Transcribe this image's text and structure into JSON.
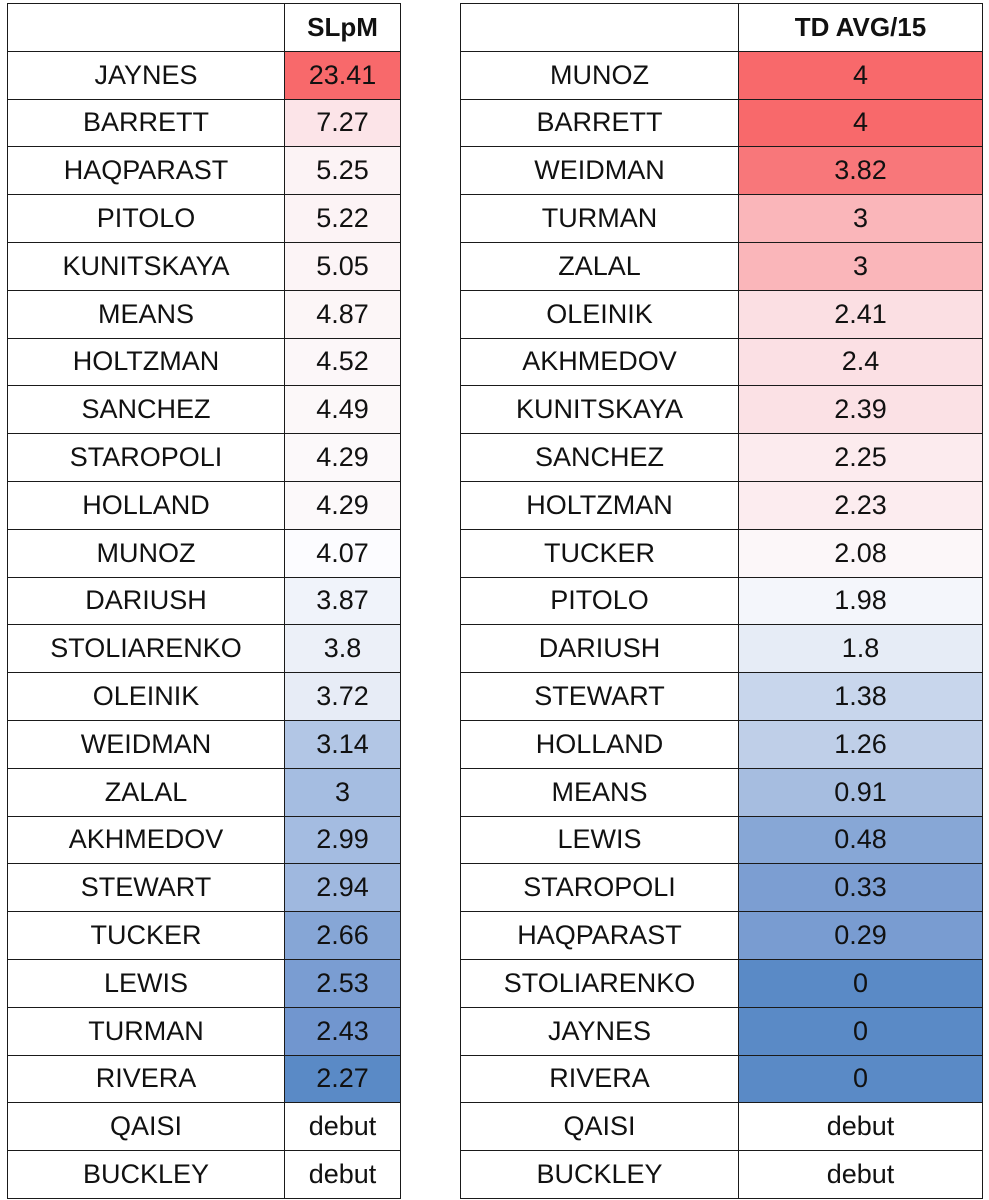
{
  "left_table": {
    "header_name": "",
    "header_value": "SLpM",
    "rows": [
      {
        "name": "JAYNES",
        "value": "23.41",
        "color": "#F8696B"
      },
      {
        "name": "BARRETT",
        "value": "7.27",
        "color": "#FCE4E8"
      },
      {
        "name": "HAQPARAST",
        "value": "5.25",
        "color": "#FCF3F5"
      },
      {
        "name": "PITOLO",
        "value": "5.22",
        "color": "#FCF3F5"
      },
      {
        "name": "KUNITSKAYA",
        "value": "5.05",
        "color": "#FCF4F6"
      },
      {
        "name": "MEANS",
        "value": "4.87",
        "color": "#FCF6F7"
      },
      {
        "name": "HOLTZMAN",
        "value": "4.52",
        "color": "#FCF7F9"
      },
      {
        "name": "SANCHEZ",
        "value": "4.49",
        "color": "#FCF8F9"
      },
      {
        "name": "STAROPOLI",
        "value": "4.29",
        "color": "#FCF9FA"
      },
      {
        "name": "HOLLAND",
        "value": "4.29",
        "color": "#FCF9FA"
      },
      {
        "name": "MUNOZ",
        "value": "4.07",
        "color": "#FCFCFF"
      },
      {
        "name": "DARIUSH",
        "value": "3.87",
        "color": "#F0F3FA"
      },
      {
        "name": "STOLIARENKO",
        "value": "3.8",
        "color": "#ECF0F8"
      },
      {
        "name": "OLEINIK",
        "value": "3.72",
        "color": "#E7ECF6"
      },
      {
        "name": "WEIDMAN",
        "value": "3.14",
        "color": "#B2C6E5"
      },
      {
        "name": "ZALAL",
        "value": "3",
        "color": "#A5BDE1"
      },
      {
        "name": "AKHMEDOV",
        "value": "2.99",
        "color": "#A4BCE1"
      },
      {
        "name": "STEWART",
        "value": "2.94",
        "color": "#9FB8DF"
      },
      {
        "name": "TUCKER",
        "value": "2.66",
        "color": "#86A6D6"
      },
      {
        "name": "LEWIS",
        "value": "2.53",
        "color": "#7A9DD2"
      },
      {
        "name": "TURMAN",
        "value": "2.43",
        "color": "#7196CF"
      },
      {
        "name": "RIVERA",
        "value": "2.27",
        "color": "#5A8AC6"
      },
      {
        "name": "QAISI",
        "value": "debut",
        "color": "#FFFFFF"
      },
      {
        "name": "BUCKLEY",
        "value": "debut",
        "color": "#FFFFFF"
      }
    ]
  },
  "right_table": {
    "header_name": "",
    "header_value": "TD AVG/15",
    "rows": [
      {
        "name": "MUNOZ",
        "value": "4",
        "color": "#F8696B"
      },
      {
        "name": "BARRETT",
        "value": "4",
        "color": "#F8696B"
      },
      {
        "name": "WEIDMAN",
        "value": "3.82",
        "color": "#F8777A"
      },
      {
        "name": "TURMAN",
        "value": "3",
        "color": "#FAB6BA"
      },
      {
        "name": "ZALAL",
        "value": "3",
        "color": "#FAB6BA"
      },
      {
        "name": "OLEINIK",
        "value": "2.41",
        "color": "#FBDFE3"
      },
      {
        "name": "AKHMEDOV",
        "value": "2.4",
        "color": "#FBE0E4"
      },
      {
        "name": "KUNITSKAYA",
        "value": "2.39",
        "color": "#FBE1E5"
      },
      {
        "name": "SANCHEZ",
        "value": "2.25",
        "color": "#FCEBEE"
      },
      {
        "name": "HOLTZMAN",
        "value": "2.23",
        "color": "#FCECEF"
      },
      {
        "name": "TUCKER",
        "value": "2.08",
        "color": "#FCF7F9"
      },
      {
        "name": "PITOLO",
        "value": "1.98",
        "color": "#F4F6FB"
      },
      {
        "name": "DARIUSH",
        "value": "1.8",
        "color": "#E6ECF6"
      },
      {
        "name": "STEWART",
        "value": "1.38",
        "color": "#C8D6EC"
      },
      {
        "name": "HOLLAND",
        "value": "1.26",
        "color": "#BFCFE8"
      },
      {
        "name": "MEANS",
        "value": "0.91",
        "color": "#A6BDE0"
      },
      {
        "name": "LEWIS",
        "value": "0.48",
        "color": "#87A7D6"
      },
      {
        "name": "STAROPOLI",
        "value": "0.33",
        "color": "#7C9ED2"
      },
      {
        "name": "HAQPARAST",
        "value": "0.29",
        "color": "#799CD1"
      },
      {
        "name": "STOLIARENKO",
        "value": "0",
        "color": "#5A8AC6"
      },
      {
        "name": "JAYNES",
        "value": "0",
        "color": "#5A8AC6"
      },
      {
        "name": "RIVERA",
        "value": "0",
        "color": "#5A8AC6"
      },
      {
        "name": "QAISI",
        "value": "debut",
        "color": "#FFFFFF"
      },
      {
        "name": "BUCKLEY",
        "value": "debut",
        "color": "#FFFFFF"
      }
    ]
  }
}
